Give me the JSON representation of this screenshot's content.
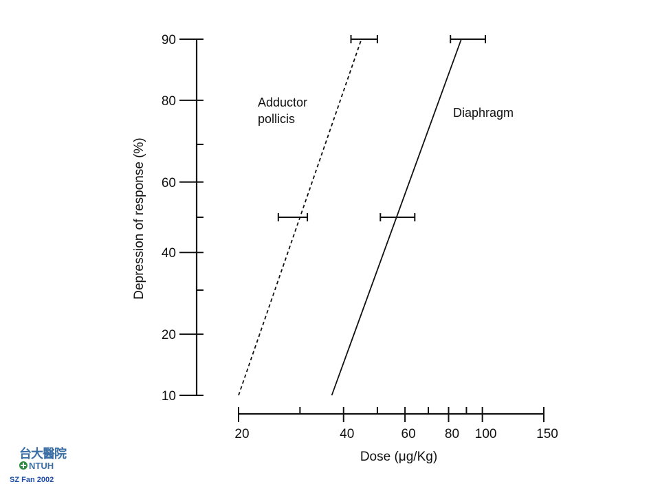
{
  "chart_data": {
    "type": "line",
    "x_scale": "log",
    "y_scale": "probit",
    "xlabel": "Dose (μg/Kg)",
    "ylabel": "Depression of response (%)",
    "xlim": [
      20,
      150
    ],
    "ylim": [
      10,
      90
    ],
    "x_tick_labels": [
      {
        "value": 20,
        "label": "20"
      },
      {
        "value": 40,
        "label": "40"
      },
      {
        "value": 60,
        "label": "60"
      },
      {
        "value": 80,
        "label": "80"
      },
      {
        "value": 100,
        "label": "100"
      },
      {
        "value": 150,
        "label": "150"
      }
    ],
    "x_minor_ticks": [
      30,
      50,
      70,
      90
    ],
    "y_tick_labels": [
      {
        "value": 10,
        "label": "10"
      },
      {
        "value": 20,
        "label": "20"
      },
      {
        "value": 40,
        "label": "40"
      },
      {
        "value": 60,
        "label": "60"
      },
      {
        "value": 80,
        "label": "80"
      },
      {
        "value": 90,
        "label": "90"
      }
    ],
    "y_minor_ticks": [
      30,
      50,
      70
    ],
    "series": [
      {
        "name": "Adductor pollicis",
        "style": "dashed",
        "points": [
          {
            "x": 20,
            "y": 10
          },
          {
            "x": 45,
            "y": 90
          }
        ],
        "error_bars": [
          {
            "y": 50,
            "x_low": 26,
            "x_high": 31.5
          },
          {
            "y": 90,
            "x_low": 42,
            "x_high": 50
          }
        ]
      },
      {
        "name": "Diaphragm",
        "style": "solid",
        "points": [
          {
            "x": 37,
            "y": 10
          },
          {
            "x": 87,
            "y": 90
          }
        ],
        "error_bars": [
          {
            "y": 50,
            "x_low": 51,
            "x_high": 64
          },
          {
            "y": 90,
            "x_low": 81,
            "x_high": 102
          }
        ]
      }
    ],
    "series_labels": [
      "Adductor",
      "pollicis",
      "Diaphragm"
    ]
  },
  "logo": {
    "cjk": "台大醫院",
    "abbr": "NTUH"
  },
  "credit": "SZ Fan 2002",
  "colors": {
    "ink": "#111111",
    "logo_blue": "#3a6ea5",
    "logo_green": "#2e8b3e",
    "credit_blue": "#1f4fa8"
  }
}
